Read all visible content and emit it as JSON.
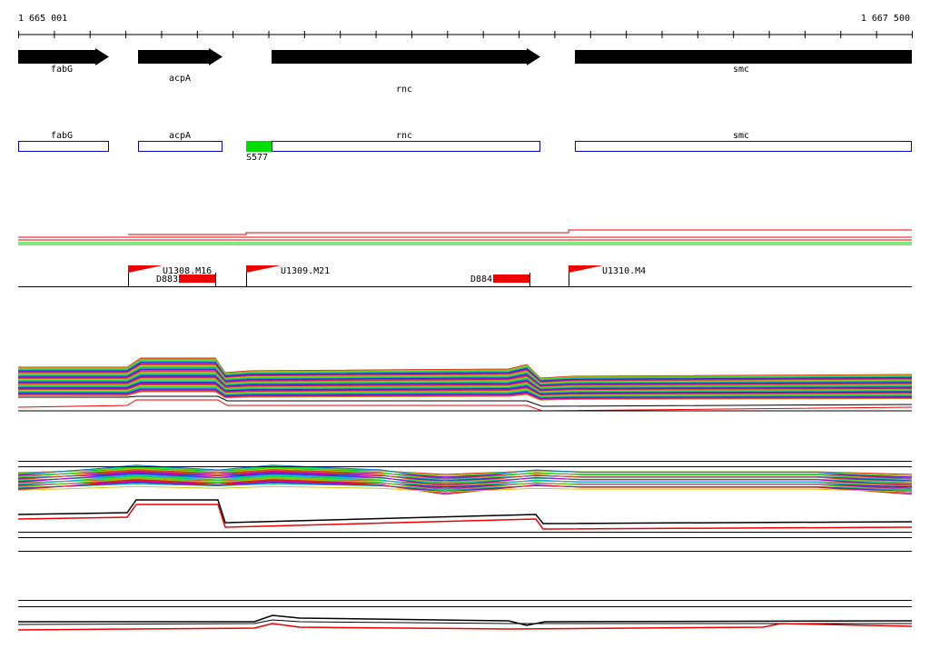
{
  "ruler": {
    "start": "1 665 001",
    "end": "1 667 500"
  },
  "gene_track": [
    "fabG",
    "acpA",
    "rnc",
    "smc"
  ],
  "cds_track": [
    "fabG",
    "acpA",
    "rnc",
    "smc"
  ],
  "features": {
    "site": "S577"
  },
  "transcripts": {
    "promoters": [
      "U1308.M16",
      "U1309.M21",
      "U1310.M4"
    ],
    "terminators": [
      "D883",
      "D884"
    ]
  }
}
